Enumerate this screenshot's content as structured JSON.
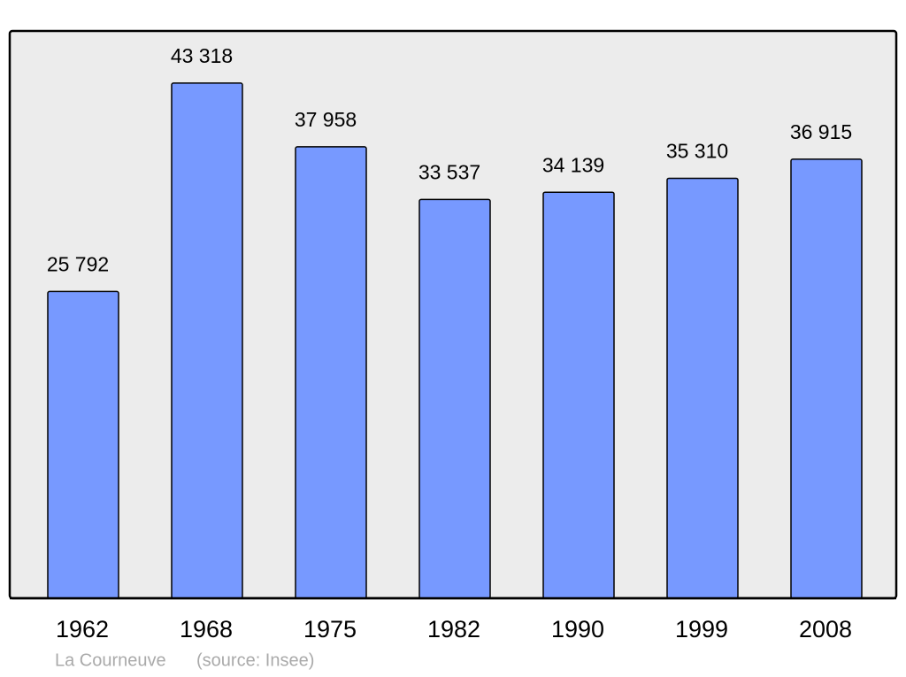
{
  "chart_data": {
    "type": "bar",
    "categories": [
      "1962",
      "1968",
      "1975",
      "1982",
      "1990",
      "1999",
      "2008"
    ],
    "values": [
      25792,
      43318,
      37958,
      33537,
      34139,
      35310,
      36915
    ],
    "value_labels": [
      "25 792",
      "43 318",
      "37 958",
      "33 537",
      "34 139",
      "35 310",
      "36 915"
    ],
    "color": "#7799ff",
    "ylim": [
      0,
      47700
    ],
    "note": "La Courneuve",
    "source": "(source: Insee)"
  }
}
